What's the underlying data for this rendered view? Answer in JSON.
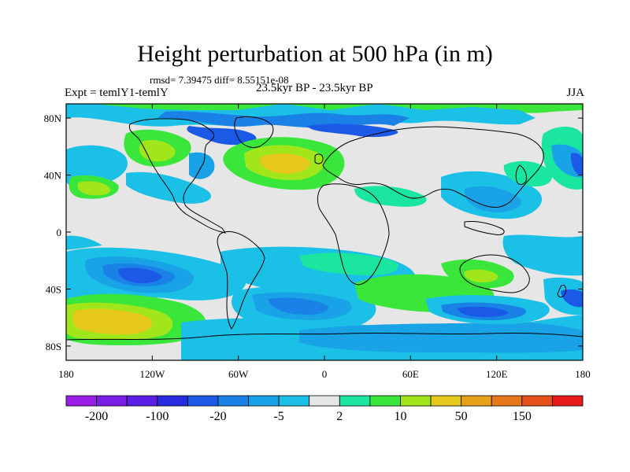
{
  "title": "Height perturbation at 500 hPa (in m)",
  "stats": "rmsd= 7.39475 diff= 8.55151e-08",
  "left_label": "Expt = temlY1-temlY",
  "center_label": "23.5kyr BP - 23.5kyr BP",
  "right_label": "JJA",
  "lon_ticks": [
    "180",
    "120W",
    "60W",
    "0",
    "60E",
    "120E",
    "180"
  ],
  "lat_ticks": [
    "80N",
    "40N",
    "0",
    "40S",
    "80S"
  ],
  "colorbar": {
    "colors": [
      "#9a1ee6",
      "#7a1ee6",
      "#5a1ee6",
      "#2a2ae0",
      "#1a5ae6",
      "#1a82e6",
      "#1aa2e6",
      "#1ac0e6",
      "#e6e6e6",
      "#1ae6a0",
      "#3ae63a",
      "#a0e61a",
      "#e6c81a",
      "#e6a01a",
      "#e6781a",
      "#e6501a",
      "#e61a1a"
    ],
    "labels": [
      "-200",
      "-100",
      "-20",
      "-5",
      "2",
      "10",
      "50",
      "150"
    ]
  },
  "colors": {
    "background": "#e6e6e6",
    "coast": "#000000"
  }
}
